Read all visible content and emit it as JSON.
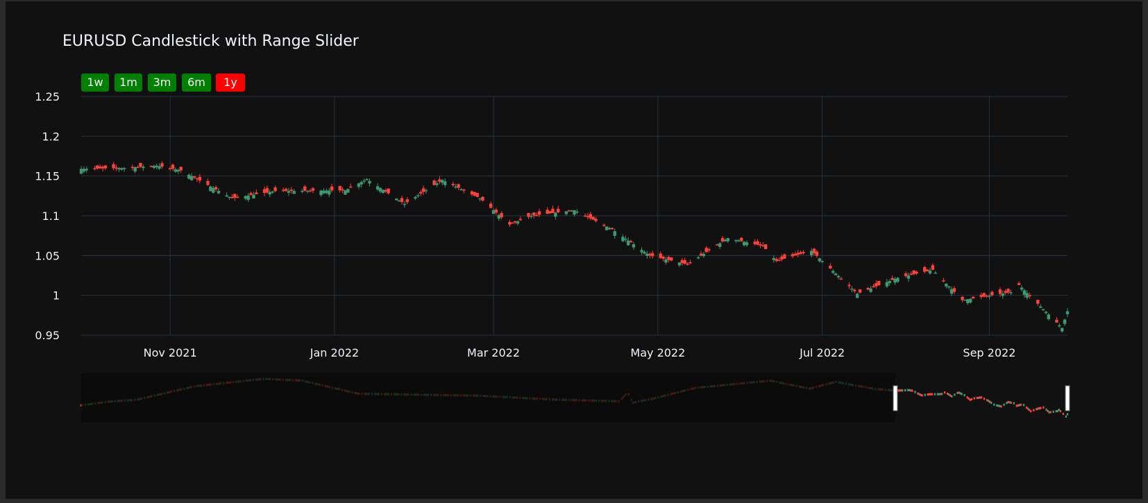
{
  "chart_title": "EURUSD Candlestick with Range Slider",
  "range_selector": [
    {
      "label": "1w",
      "active": false
    },
    {
      "label": "1m",
      "active": false
    },
    {
      "label": "3m",
      "active": false
    },
    {
      "label": "6m",
      "active": false
    },
    {
      "label": "1y",
      "active": true
    }
  ],
  "colors": {
    "increasing": "#3d9970",
    "decreasing": "#ff4136",
    "button_bg": "#008000",
    "button_active_bg": "#ff0000",
    "grid": "#283442",
    "text": "#f2f5fa",
    "background": "#111111",
    "slider_mask": "#0a0a0a"
  },
  "chart_data": {
    "type": "candlestick",
    "title": "EURUSD Candlestick with Range Slider",
    "x_range": [
      "2021-09-29",
      "2022-09-30"
    ],
    "ylim": [
      0.95,
      1.25
    ],
    "y_ticks": [
      "0.95",
      "1",
      "1.05",
      "1.1",
      "1.15",
      "1.2",
      "1.25"
    ],
    "x_ticks": [
      {
        "date": "2021-11-01",
        "label": "Nov 2021"
      },
      {
        "date": "2022-01-01",
        "label": "Jan 2022"
      },
      {
        "date": "2022-03-01",
        "label": "Mar 2022"
      },
      {
        "date": "2022-05-01",
        "label": "May 2022"
      },
      {
        "date": "2022-07-01",
        "label": "Jul 2022"
      },
      {
        "date": "2022-09-01",
        "label": "Sep 2022"
      }
    ],
    "grid": true,
    "rangeslider": {
      "visible": true,
      "selected": [
        "2021-09-29",
        "2022-09-30"
      ]
    },
    "close_path": [
      [
        "2021-09-29",
        1.159
      ],
      [
        "2021-10-15",
        1.16
      ],
      [
        "2021-10-27",
        1.163
      ],
      [
        "2021-11-05",
        1.157
      ],
      [
        "2021-11-10",
        1.148
      ],
      [
        "2021-11-24",
        1.122
      ],
      [
        "2021-12-10",
        1.131
      ],
      [
        "2022-01-05",
        1.132
      ],
      [
        "2022-01-13",
        1.146
      ],
      [
        "2022-01-27",
        1.115
      ],
      [
        "2022-02-10",
        1.145
      ],
      [
        "2022-02-24",
        1.122
      ],
      [
        "2022-03-07",
        1.089
      ],
      [
        "2022-03-15",
        1.1
      ],
      [
        "2022-03-31",
        1.107
      ],
      [
        "2022-04-14",
        1.083
      ],
      [
        "2022-04-28",
        1.05
      ],
      [
        "2022-05-12",
        1.039
      ],
      [
        "2022-05-27",
        1.072
      ],
      [
        "2022-06-09",
        1.062
      ],
      [
        "2022-06-14",
        1.043
      ],
      [
        "2022-06-27",
        1.056
      ],
      [
        "2022-07-14",
        1.002
      ],
      [
        "2022-07-29",
        1.022
      ],
      [
        "2022-08-11",
        1.032
      ],
      [
        "2022-08-22",
        0.994
      ],
      [
        "2022-09-09",
        1.004
      ],
      [
        "2022-09-12",
        1.013
      ],
      [
        "2022-09-28",
        0.959
      ],
      [
        "2022-09-30",
        0.98
      ]
    ],
    "history_path": [
      [
        "2017-01-02",
        1.047
      ],
      [
        "2017-03-01",
        1.075
      ],
      [
        "2017-05-01",
        1.09
      ],
      [
        "2017-09-01",
        1.192
      ],
      [
        "2018-01-25",
        1.248
      ],
      [
        "2018-04-15",
        1.235
      ],
      [
        "2018-08-15",
        1.135
      ],
      [
        "2019-05-01",
        1.12
      ],
      [
        "2019-10-01",
        1.091
      ],
      [
        "2020-02-20",
        1.078
      ],
      [
        "2020-03-09",
        1.145
      ],
      [
        "2020-03-20",
        1.068
      ],
      [
        "2020-05-01",
        1.097
      ],
      [
        "2020-08-01",
        1.18
      ],
      [
        "2021-01-06",
        1.234
      ],
      [
        "2021-03-31",
        1.173
      ],
      [
        "2021-05-25",
        1.225
      ],
      [
        "2021-08-20",
        1.169
      ],
      [
        "2021-09-29",
        1.159
      ]
    ]
  }
}
